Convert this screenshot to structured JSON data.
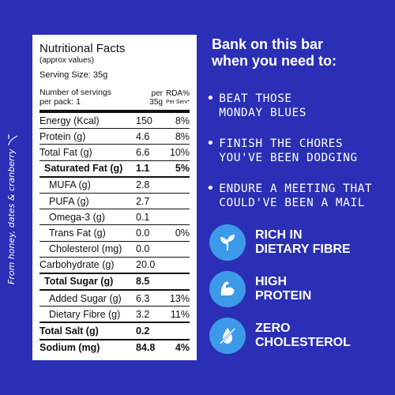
{
  "side_note": "From honey, dates & cranberry",
  "panel": {
    "title": "Nutritional Facts",
    "subtitle": "(approx values)",
    "serving_size": "Serving Size: 35g",
    "servings_label_1": "Number of servings",
    "servings_label_2": "per pack: 1",
    "col_per_1": "per",
    "col_per_2": "35g",
    "col_rda_1": "RDA%",
    "col_rda_2": "Per Serv*",
    "rows": [
      {
        "name": "Energy (Kcal)",
        "value": "150",
        "rda": "8%"
      },
      {
        "name": "Protein (g)",
        "value": "4.6",
        "rda": "8%"
      },
      {
        "name": "Total Fat (g)",
        "value": "6.6",
        "rda": "10%"
      },
      {
        "name": "Saturated Fat (g)",
        "value": "1.1",
        "rda": "5%"
      },
      {
        "name": "MUFA (g)",
        "value": "2.8",
        "rda": ""
      },
      {
        "name": "PUFA (g)",
        "value": "2.7",
        "rda": ""
      },
      {
        "name": "Omega-3 (g)",
        "value": "0.1",
        "rda": ""
      },
      {
        "name": "Trans Fat (g)",
        "value": "0.0",
        "rda": "0%"
      },
      {
        "name": "Cholesterol (mg)",
        "value": "0.0",
        "rda": ""
      },
      {
        "name": "Carbohydrate (g)",
        "value": "20.0",
        "rda": ""
      },
      {
        "name": "Total Sugar (g)",
        "value": "8.5",
        "rda": ""
      },
      {
        "name": "Added Sugar (g)",
        "value": "6.3",
        "rda": "13%"
      },
      {
        "name": "Dietary Fibre (g)",
        "value": "3.2",
        "rda": "11%"
      },
      {
        "name": "Total Salt (g)",
        "value": "0.2",
        "rda": ""
      },
      {
        "name": "Sodium (mg)",
        "value": "84.8",
        "rda": "4%"
      }
    ]
  },
  "headline_1": "Bank on this bar",
  "headline_2": "when you need to:",
  "bullets": [
    {
      "line1": "BEAT THOSE",
      "line2": "MONDAY BLUES"
    },
    {
      "line1": "FINISH THE CHORES",
      "line2": "YOU'VE BEEN DODGING"
    },
    {
      "line1": "ENDURE A MEETING THAT",
      "line2": "COULD'VE BEEN A MAIL"
    }
  ],
  "features": [
    {
      "line1": "RICH IN",
      "line2": "DIETARY FIBRE",
      "icon": "leaf-icon"
    },
    {
      "line1": "HIGH",
      "line2": "PROTEIN",
      "icon": "flexed-arm-icon"
    },
    {
      "line1": "ZERO",
      "line2": "CHOLESTEROL",
      "icon": "no-drop-icon"
    }
  ],
  "colors": {
    "background": "#2a2fb5",
    "badge": "#3d9ae8",
    "panel": "#ffffff"
  }
}
